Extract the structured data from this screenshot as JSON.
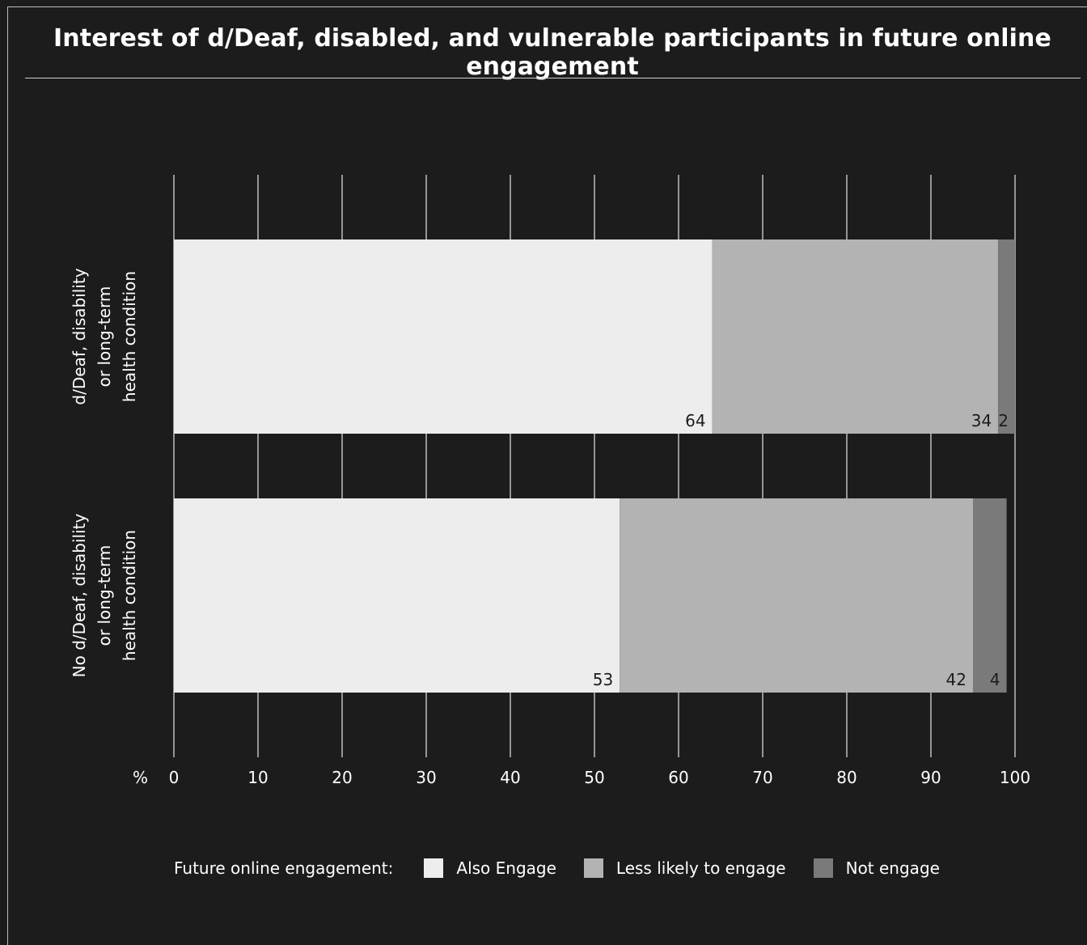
{
  "chart_data": {
    "type": "bar",
    "orientation": "horizontal",
    "stacked": true,
    "title": "Interest of d/Deaf, disabled, and vulnerable participants in future online engagement",
    "x_unit_label": "%",
    "xlim": [
      0,
      100
    ],
    "x_ticks": [
      "0",
      "10",
      "20",
      "30",
      "40",
      "50",
      "60",
      "70",
      "80",
      "90",
      "100"
    ],
    "grid": "vertical",
    "categories": [
      [
        "d/Deaf, disability",
        "or long-term",
        "health condition"
      ],
      [
        "No d/Deaf, disability",
        "or long-term",
        "health condition"
      ]
    ],
    "series": [
      {
        "name": "Also Engage",
        "values": [
          64,
          53
        ],
        "color": "#ededed"
      },
      {
        "name": "Less likely to engage",
        "values": [
          34,
          42
        ],
        "color": "#b3b3b3"
      },
      {
        "name": "Not engage",
        "values": [
          2,
          4
        ],
        "color": "#7a7a7a"
      }
    ],
    "legend": {
      "title": "Future online engagement:",
      "placement": "bottom"
    }
  }
}
